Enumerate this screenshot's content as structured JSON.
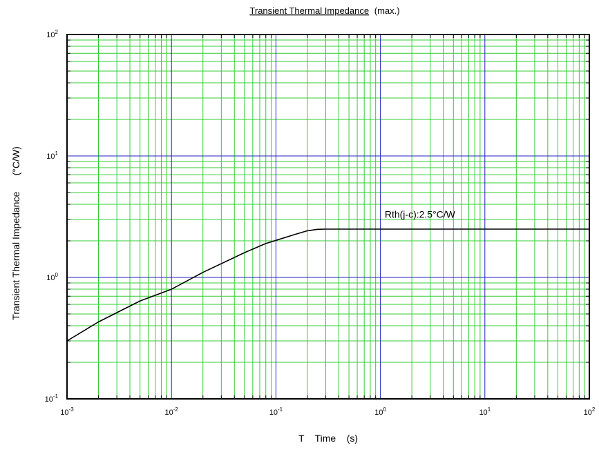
{
  "chart_data": {
    "type": "line",
    "title": "Transient Thermal Impedance",
    "title_suffix": "(max.)",
    "xlabel": "T    Time    (s)",
    "ylabel": "Transient Thermal Impedance      (°C/W)",
    "x_scale": "log",
    "y_scale": "log",
    "xlim": [
      0.001,
      100
    ],
    "ylim": [
      0.1,
      100
    ],
    "x_ticks": [
      {
        "base": "10",
        "exp": "-3",
        "value": 0.001
      },
      {
        "base": "10",
        "exp": "-2",
        "value": 0.01
      },
      {
        "base": "10",
        "exp": "-1",
        "value": 0.1
      },
      {
        "base": "10",
        "exp": "0",
        "value": 1
      },
      {
        "base": "10",
        "exp": "1",
        "value": 10
      },
      {
        "base": "10",
        "exp": "2",
        "value": 100
      }
    ],
    "y_ticks": [
      {
        "base": "10",
        "exp": "-1",
        "value": 0.1
      },
      {
        "base": "10",
        "exp": "0",
        "value": 1
      },
      {
        "base": "10",
        "exp": "1",
        "value": 10
      },
      {
        "base": "10",
        "exp": "2",
        "value": 100
      }
    ],
    "grid": true,
    "grid_major_color": "#2020c0",
    "grid_minor_color": "#33cc33",
    "series": [
      {
        "color": "#000000",
        "x": [
          0.001,
          0.002,
          0.005,
          0.01,
          0.02,
          0.05,
          0.08,
          0.1,
          0.15,
          0.2,
          0.25,
          0.3,
          1,
          10,
          100
        ],
        "y": [
          0.3,
          0.43,
          0.64,
          0.8,
          1.1,
          1.6,
          1.9,
          2.02,
          2.25,
          2.42,
          2.49,
          2.5,
          2.5,
          2.5,
          2.5
        ]
      }
    ],
    "annotations": [
      {
        "text": "Rth(j-c):2.5°C/W",
        "x": 1.1,
        "y": 3.1
      }
    ]
  }
}
